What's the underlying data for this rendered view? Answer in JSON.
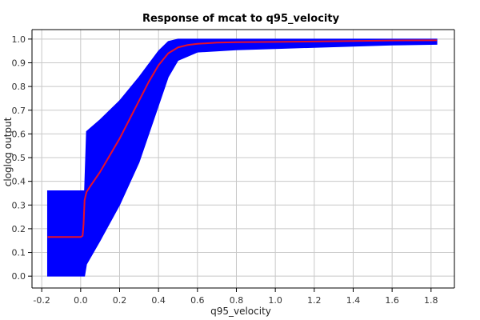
{
  "chart_data": {
    "type": "area",
    "title": "Response of mcat to q95_velocity",
    "xlabel": "q95_velocity",
    "ylabel": "cloglog output",
    "xlim": [
      -0.25,
      1.92
    ],
    "ylim": [
      -0.05,
      1.04
    ],
    "x_ticks": [
      -0.2,
      0.0,
      0.2,
      0.4,
      0.6,
      0.8,
      1.0,
      1.2,
      1.4,
      1.6,
      1.8
    ],
    "x_tick_labels": [
      "-0.2",
      "0.0",
      "0.2",
      "0.4",
      "0.6",
      "0.8",
      "1.0",
      "1.2",
      "1.4",
      "1.6",
      "1.8"
    ],
    "y_ticks": [
      0.0,
      0.1,
      0.2,
      0.3,
      0.4,
      0.5,
      0.6,
      0.7,
      0.8,
      0.9,
      1.0
    ],
    "y_tick_labels": [
      "0.0",
      "0.1",
      "0.2",
      "0.3",
      "0.4",
      "0.5",
      "0.6",
      "0.7",
      "0.8",
      "0.9",
      "1.0"
    ],
    "grid": true,
    "colors": {
      "band": "#0000ff",
      "mean": "#e8102a"
    },
    "band": {
      "x": [
        -0.17,
        0.02,
        0.03,
        0.1,
        0.2,
        0.3,
        0.4,
        0.45,
        0.5,
        0.6,
        0.8,
        1.0,
        1.2,
        1.4,
        1.6,
        1.83
      ],
      "lower": [
        0.0,
        0.0,
        0.05,
        0.15,
        0.3,
        0.48,
        0.72,
        0.84,
        0.91,
        0.945,
        0.955,
        0.96,
        0.965,
        0.97,
        0.975,
        0.978
      ],
      "upper": [
        0.36,
        0.36,
        0.61,
        0.66,
        0.74,
        0.84,
        0.95,
        0.99,
        1.0,
        1.0,
        1.0,
        1.0,
        1.0,
        1.0,
        1.0,
        1.0
      ]
    },
    "series": [
      {
        "x": [
          -0.17,
          0.0,
          0.01,
          0.015,
          0.02,
          0.03,
          0.05,
          0.1,
          0.15,
          0.2,
          0.25,
          0.3,
          0.35,
          0.4,
          0.45,
          0.5,
          0.55,
          0.6,
          0.7,
          0.8,
          1.0,
          1.2,
          1.4,
          1.6,
          1.83
        ],
        "values": [
          0.165,
          0.165,
          0.17,
          0.22,
          0.32,
          0.355,
          0.38,
          0.44,
          0.51,
          0.58,
          0.66,
          0.74,
          0.82,
          0.89,
          0.94,
          0.965,
          0.975,
          0.98,
          0.985,
          0.987,
          0.988,
          0.99,
          0.992,
          0.994,
          0.995
        ]
      }
    ]
  }
}
